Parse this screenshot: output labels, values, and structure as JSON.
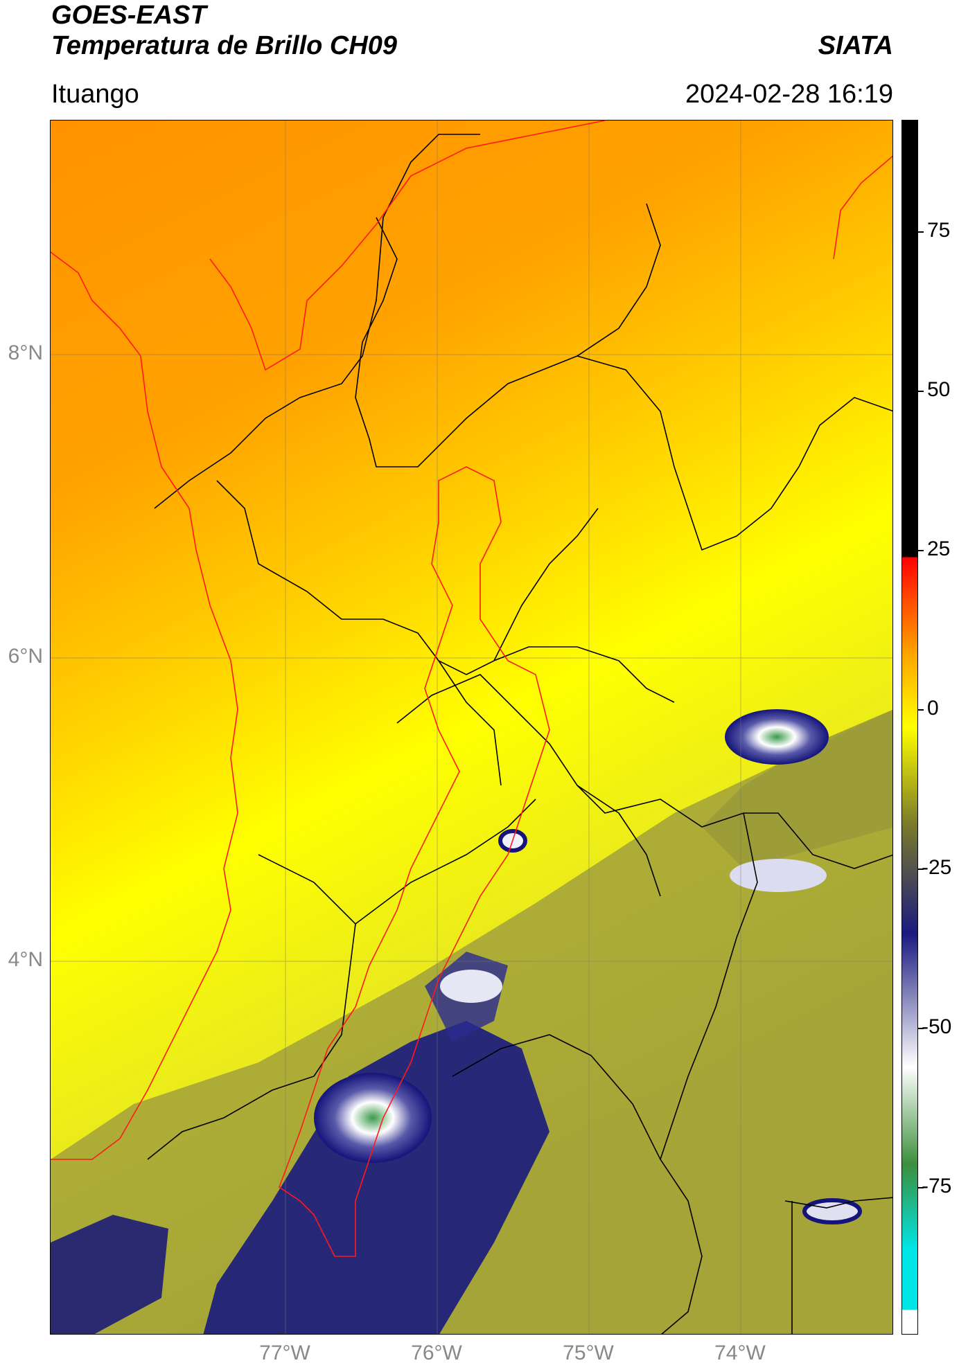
{
  "header": {
    "title_line1": "GOES-EAST",
    "title_line2": "Temperatura de Brillo CH09",
    "org": "SIATA",
    "region": "Ituango",
    "datetime": "2024-02-28 16:19"
  },
  "axes": {
    "lat_ticks": [
      "8°N",
      "6°N",
      "4°N"
    ],
    "lon_ticks": [
      "77°W",
      "76°W",
      "75°W",
      "74°W"
    ]
  },
  "colorbar": {
    "ticks": [
      "75",
      "50",
      "25",
      "0",
      "-25",
      "-50",
      "-75"
    ],
    "colors": [
      "#ffffff",
      "#00e5e5",
      "#3c8f3c",
      "#ffffff",
      "#1a1a80",
      "#7a7a2a",
      "#ffff00",
      "#ffa500",
      "#ff4000",
      "#ff0000",
      "#000000"
    ]
  },
  "map": {
    "colors": {
      "warm": "#ff9a00",
      "mid": "#ffcc00",
      "yellow": "#ffff00",
      "olive": "#8c8c2a",
      "navy": "#14147a",
      "white": "#ffffff",
      "green": "#3a9a4a",
      "border": "#000000",
      "basin": "#ff0000"
    }
  }
}
